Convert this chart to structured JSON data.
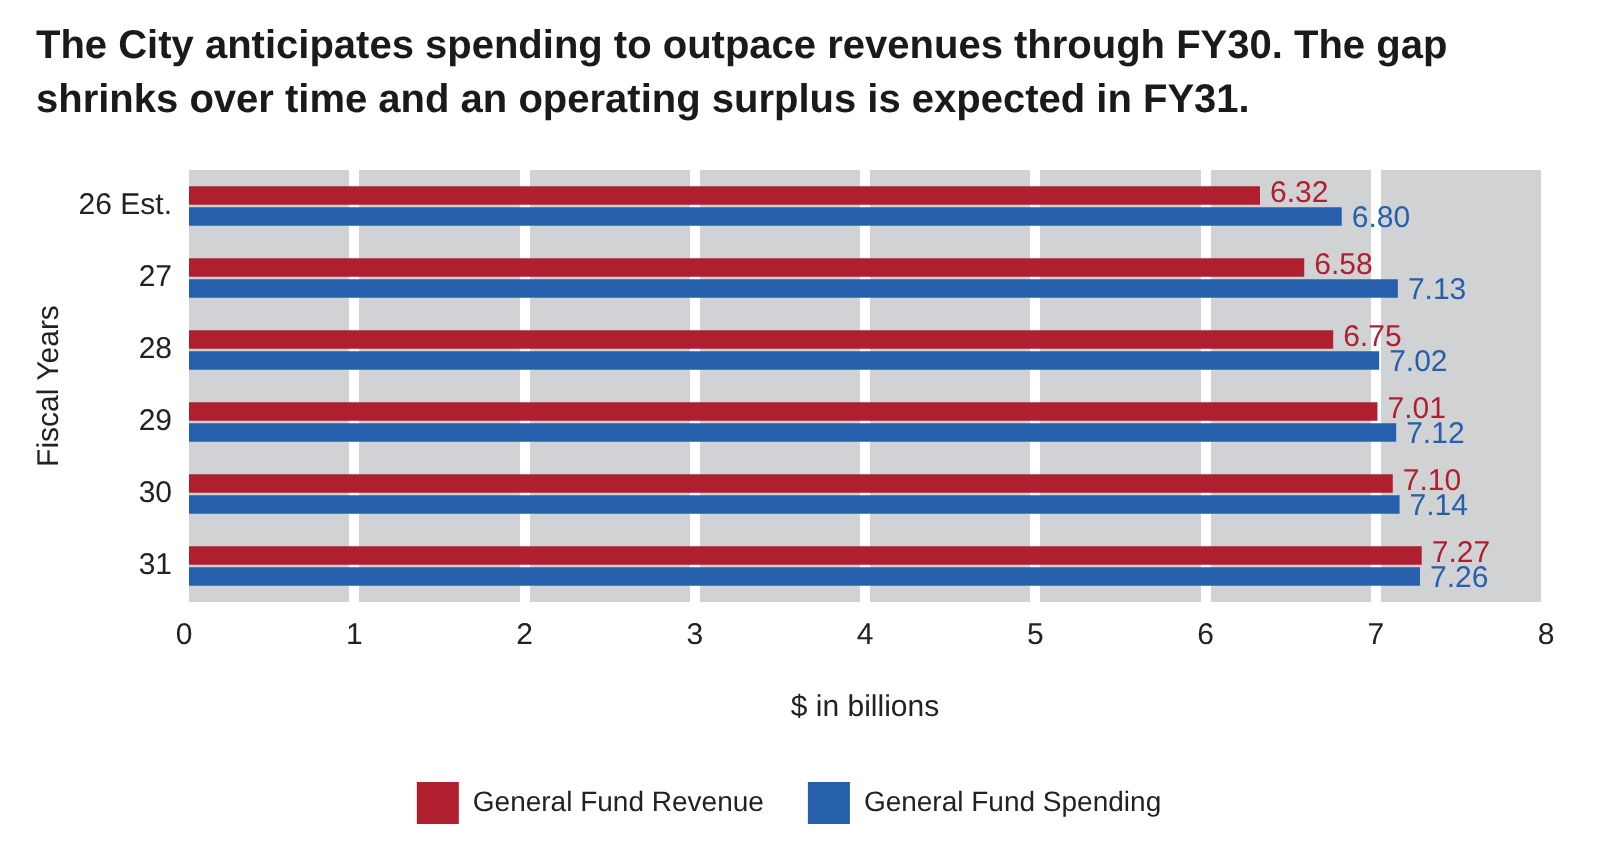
{
  "chart_data": {
    "type": "bar",
    "orientation": "horizontal",
    "title": "The City anticipates spending to outpace revenues through FY30. The gap shrinks over time and an operating surplus is expected in FY31.",
    "xlabel": "$ in billions",
    "ylabel": "Fiscal Years",
    "categories": [
      "26 Est.",
      "27",
      "28",
      "29",
      "30",
      "31"
    ],
    "series": [
      {
        "name": "General Fund Revenue",
        "color": "#b01f2e",
        "values": [
          6.32,
          6.58,
          6.75,
          7.01,
          7.1,
          7.27
        ],
        "value_labels": [
          "6.32",
          "6.58",
          "6.75",
          "7.01",
          "7.10",
          "7.27"
        ]
      },
      {
        "name": "General Fund Spending",
        "color": "#2660ad",
        "values": [
          6.8,
          7.13,
          7.02,
          7.12,
          7.14,
          7.26
        ],
        "value_labels": [
          "6.80",
          "7.13",
          "7.02",
          "7.12",
          "7.14",
          "7.26"
        ]
      }
    ],
    "xlim": [
      0,
      8
    ],
    "xticks": [
      0,
      1,
      2,
      3,
      4,
      5,
      6,
      7,
      8
    ],
    "grid": "x",
    "legend": "bottom"
  }
}
